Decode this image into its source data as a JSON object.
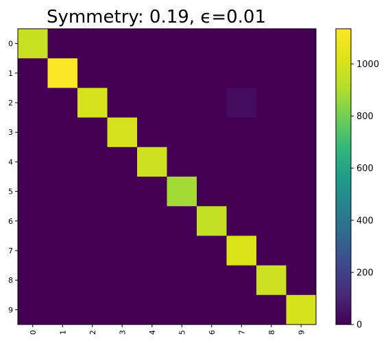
{
  "chart_data": {
    "type": "heatmap",
    "title": "Symmetry: 0.19, ϵ=0.01",
    "xlabel": "",
    "ylabel": "",
    "x_categories": [
      "0",
      "1",
      "2",
      "3",
      "4",
      "5",
      "6",
      "7",
      "8",
      "9"
    ],
    "y_categories": [
      "0",
      "1",
      "2",
      "3",
      "4",
      "5",
      "6",
      "7",
      "8",
      "9"
    ],
    "values": [
      [
        960,
        0,
        0,
        0,
        0,
        0,
        0,
        0,
        0,
        0
      ],
      [
        0,
        1130,
        0,
        0,
        0,
        0,
        0,
        0,
        0,
        0
      ],
      [
        0,
        0,
        1000,
        0,
        0,
        0,
        0,
        30,
        0,
        0
      ],
      [
        0,
        0,
        0,
        1000,
        0,
        0,
        0,
        0,
        0,
        0
      ],
      [
        0,
        0,
        0,
        0,
        975,
        0,
        0,
        0,
        0,
        0
      ],
      [
        0,
        0,
        0,
        0,
        0,
        880,
        0,
        0,
        0,
        0
      ],
      [
        0,
        0,
        0,
        0,
        0,
        0,
        950,
        0,
        0,
        0
      ],
      [
        0,
        0,
        0,
        0,
        0,
        0,
        0,
        1020,
        0,
        0
      ],
      [
        0,
        0,
        0,
        0,
        0,
        0,
        0,
        0,
        970,
        0
      ],
      [
        0,
        0,
        0,
        0,
        0,
        0,
        0,
        0,
        0,
        1000
      ]
    ],
    "colormap": "viridis",
    "color_range": [
      0,
      1135
    ],
    "colorbar_ticks": [
      0,
      200,
      400,
      600,
      800,
      1000
    ],
    "grid": false,
    "legend": "colorbar-right"
  }
}
